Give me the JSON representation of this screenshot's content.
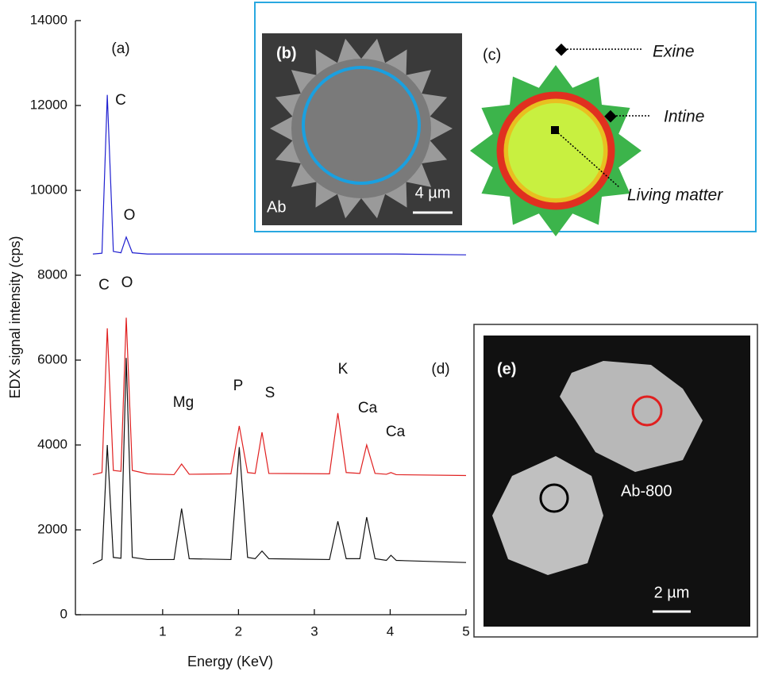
{
  "chart_data": {
    "type": "line",
    "x_label": "Energy (KeV)",
    "y_label": "EDX signal intensity (cps)",
    "xlim": [
      -0.15,
      5
    ],
    "xticks": [
      1,
      2,
      3,
      4,
      5
    ],
    "ylim": [
      0,
      14000
    ],
    "yticks": [
      0,
      2000,
      4000,
      6000,
      8000,
      10000,
      12000,
      14000
    ],
    "x": [
      0.08,
      0.2,
      0.27,
      0.35,
      0.45,
      0.52,
      0.6,
      0.8,
      1.15,
      1.25,
      1.35,
      1.9,
      2.01,
      2.12,
      2.22,
      2.31,
      2.4,
      3.2,
      3.31,
      3.42,
      3.6,
      3.69,
      3.8,
      3.95,
      4.01,
      4.08,
      5.0
    ],
    "series": [
      {
        "color": "#2020d0",
        "values": [
          8500,
          8520,
          12250,
          8560,
          8530,
          8900,
          8530,
          8500,
          8500,
          8500,
          8500,
          8500,
          8500,
          8500,
          8500,
          8500,
          8500,
          8500,
          8500,
          8500,
          8500,
          8500,
          8500,
          8500,
          8500,
          8500,
          8480
        ]
      },
      {
        "color": "#e02020",
        "values": [
          3300,
          3350,
          6750,
          3400,
          3380,
          7000,
          3400,
          3320,
          3300,
          3550,
          3310,
          3320,
          4450,
          3350,
          3330,
          4300,
          3330,
          3320,
          4750,
          3350,
          3330,
          4000,
          3330,
          3310,
          3350,
          3300,
          3280
        ]
      },
      {
        "color": "#111111",
        "values": [
          1200,
          1300,
          4000,
          1350,
          1330,
          6050,
          1350,
          1300,
          1300,
          2500,
          1320,
          1300,
          3950,
          1350,
          1320,
          1500,
          1320,
          1300,
          2200,
          1320,
          1320,
          2300,
          1320,
          1280,
          1400,
          1280,
          1230
        ]
      }
    ],
    "annotations": [
      "(a)",
      "C",
      "O",
      "C",
      "O",
      "Mg",
      "P",
      "S",
      "K",
      "Ca",
      "Ca",
      "(d)"
    ]
  },
  "insets": {
    "b": {
      "label": "(b)",
      "sample": "Ab",
      "scale": "4 µm"
    },
    "c": {
      "label": "(c)",
      "parts": [
        "Exine",
        "Intine",
        "Living matter"
      ]
    },
    "e": {
      "label": "(e)",
      "sample": "Ab-800",
      "scale": "2 µm"
    }
  }
}
